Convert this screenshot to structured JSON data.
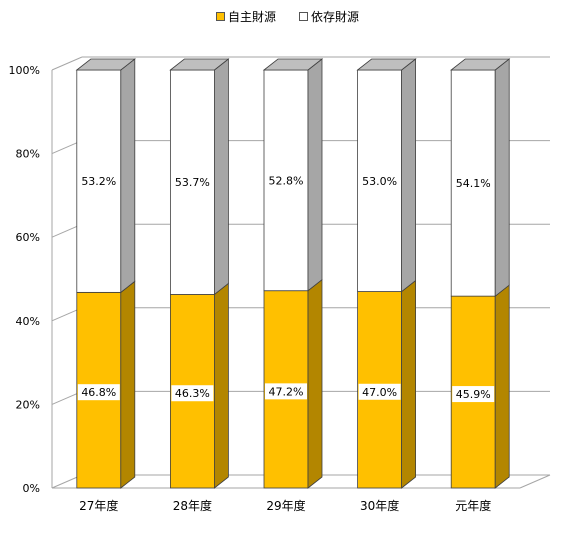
{
  "chart_data": {
    "type": "bar",
    "stacked": true,
    "percent": true,
    "three_d": true,
    "categories": [
      "27年度",
      "28年度",
      "29年度",
      "30年度",
      "元年度"
    ],
    "series": [
      {
        "name": "自主財源",
        "values": [
          46.8,
          46.3,
          47.2,
          47.0,
          45.9
        ],
        "labels": [
          "46.8%",
          "46.3%",
          "47.2%",
          "47.0%",
          "45.9%"
        ]
      },
      {
        "name": "依存財源",
        "values": [
          53.2,
          53.7,
          52.8,
          53.0,
          54.1
        ],
        "labels": [
          "53.2%",
          "53.7%",
          "52.8%",
          "53.0%",
          "54.1%"
        ]
      }
    ],
    "y_ticks": [
      "0%",
      "20%",
      "40%",
      "60%",
      "80%",
      "100%"
    ],
    "ylim": [
      0,
      100
    ],
    "grid": true,
    "legend_position": "top-center",
    "colors": {
      "own_front": "#FFC000",
      "own_side": "#B38600",
      "dep_front": "#FFFFFF",
      "dep_side": "#A6A6A6",
      "top": "#BFBFBF",
      "grid": "#A6A6A6",
      "outline": "#404040"
    }
  }
}
